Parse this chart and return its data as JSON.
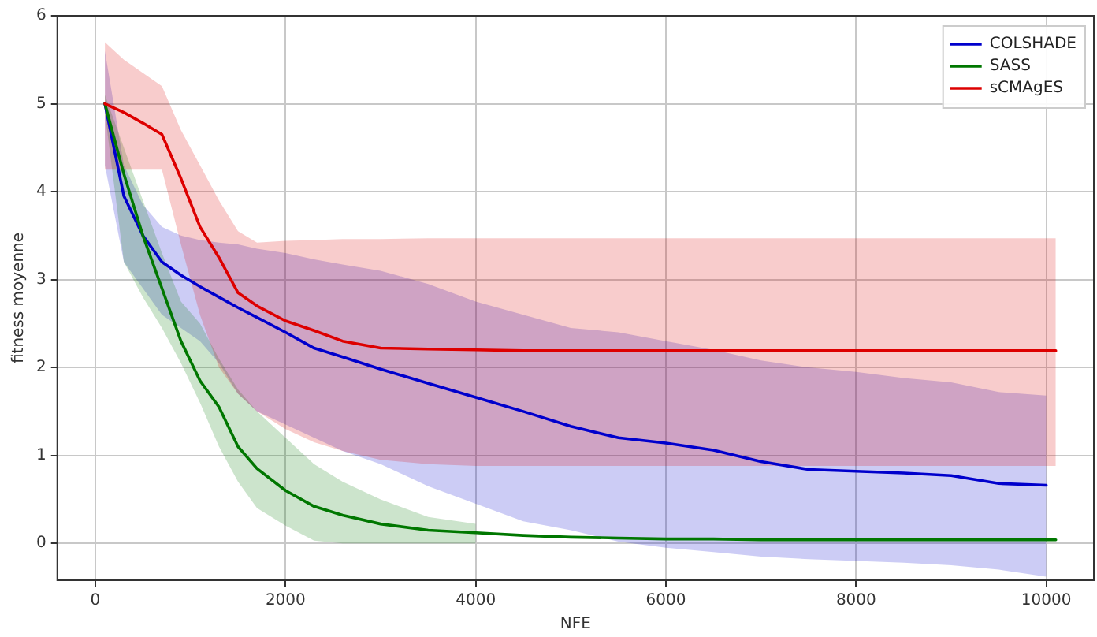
{
  "chart_data": {
    "type": "line",
    "xlabel": "NFE",
    "ylabel": "fitness moyenne",
    "xlim": [
      -400,
      10500
    ],
    "ylim": [
      -0.42,
      6
    ],
    "xticks": [
      0,
      2000,
      4000,
      6000,
      8000,
      10000
    ],
    "yticks": [
      0,
      1,
      2,
      3,
      4,
      5,
      6
    ],
    "grid": true,
    "legend": "top right",
    "marker": "none",
    "line_style": "solid",
    "series": [
      {
        "name": "COLSHADE",
        "color": "#0000cc",
        "x": [
          100,
          300,
          500,
          700,
          900,
          1100,
          1300,
          1500,
          1700,
          2000,
          2300,
          2600,
          3000,
          3500,
          4000,
          4500,
          5000,
          5500,
          6000,
          6500,
          7000,
          7500,
          8000,
          8500,
          9000,
          9500,
          10000
        ],
        "values": [
          5.0,
          3.95,
          3.5,
          3.2,
          3.05,
          2.92,
          2.8,
          2.68,
          2.57,
          2.4,
          2.22,
          2.12,
          1.98,
          1.82,
          1.66,
          1.5,
          1.33,
          1.2,
          1.14,
          1.06,
          0.93,
          0.84,
          0.82,
          0.8,
          0.77,
          0.68,
          0.66
        ],
        "upper": [
          5.6,
          4.3,
          3.85,
          3.6,
          3.5,
          3.45,
          3.42,
          3.4,
          3.35,
          3.3,
          3.23,
          3.17,
          3.1,
          2.95,
          2.75,
          2.6,
          2.45,
          2.4,
          2.3,
          2.2,
          2.08,
          2.0,
          1.95,
          1.88,
          1.83,
          1.72,
          1.68
        ],
        "lower": [
          4.3,
          3.2,
          2.9,
          2.6,
          2.45,
          2.3,
          2.05,
          1.7,
          1.5,
          1.35,
          1.2,
          1.05,
          0.9,
          0.65,
          0.45,
          0.25,
          0.15,
          0.02,
          -0.05,
          -0.1,
          -0.15,
          -0.18,
          -0.2,
          -0.22,
          -0.25,
          -0.3,
          -0.38
        ]
      },
      {
        "name": "SASS",
        "color": "#007700",
        "x": [
          100,
          300,
          500,
          700,
          900,
          1100,
          1300,
          1500,
          1700,
          2000,
          2300,
          2600,
          3000,
          3500,
          4000,
          4500,
          5000,
          5500,
          6000,
          6500,
          7000,
          7500,
          8000,
          8500,
          9000,
          9500,
          10100
        ],
        "values": [
          5.0,
          4.2,
          3.5,
          2.9,
          2.3,
          1.85,
          1.55,
          1.1,
          0.85,
          0.6,
          0.42,
          0.32,
          0.22,
          0.15,
          0.12,
          0.09,
          0.07,
          0.06,
          0.05,
          0.05,
          0.04,
          0.04,
          0.04,
          0.04,
          0.04,
          0.04,
          0.04
        ],
        "upper": [
          5.1,
          4.5,
          3.9,
          3.3,
          2.75,
          2.5,
          2.1,
          1.75,
          1.5,
          1.2,
          0.9,
          0.7,
          0.5,
          0.3,
          0.22,
          null,
          null,
          null,
          null,
          null,
          null,
          null,
          null,
          null,
          null,
          null,
          null
        ],
        "lower": [
          4.9,
          3.2,
          2.8,
          2.45,
          2.05,
          1.6,
          1.1,
          0.7,
          0.4,
          0.2,
          0.03,
          0,
          0,
          0,
          0,
          null,
          null,
          null,
          null,
          null,
          null,
          null,
          null,
          null,
          null,
          null,
          null
        ]
      },
      {
        "name": "sCMAgES",
        "color": "#dd0000",
        "x": [
          100,
          300,
          500,
          700,
          900,
          1100,
          1300,
          1500,
          1700,
          2000,
          2300,
          2600,
          3000,
          3500,
          4000,
          4500,
          5000,
          5500,
          6000,
          6500,
          7000,
          7500,
          8000,
          8500,
          9000,
          9500,
          10100
        ],
        "values": [
          5.0,
          4.9,
          4.78,
          4.65,
          4.15,
          3.6,
          3.25,
          2.85,
          2.7,
          2.53,
          2.42,
          2.3,
          2.22,
          2.21,
          2.2,
          2.19,
          2.19,
          2.19,
          2.19,
          2.19,
          2.19,
          2.19,
          2.19,
          2.19,
          2.19,
          2.19,
          2.19
        ],
        "upper": [
          5.7,
          5.5,
          5.35,
          5.2,
          4.7,
          4.3,
          3.9,
          3.55,
          3.42,
          3.44,
          3.45,
          3.46,
          3.46,
          3.47,
          3.47,
          3.47,
          3.47,
          3.47,
          3.47,
          3.47,
          3.47,
          3.47,
          3.47,
          3.47,
          3.47,
          3.47,
          3.47
        ],
        "lower": [
          4.25,
          4.25,
          4.25,
          4.25,
          3.4,
          2.6,
          2.0,
          1.7,
          1.5,
          1.3,
          1.15,
          1.05,
          0.95,
          0.9,
          0.88,
          0.88,
          0.88,
          0.88,
          0.88,
          0.88,
          0.88,
          0.88,
          0.88,
          0.88,
          0.88,
          0.88,
          0.88
        ]
      }
    ]
  }
}
